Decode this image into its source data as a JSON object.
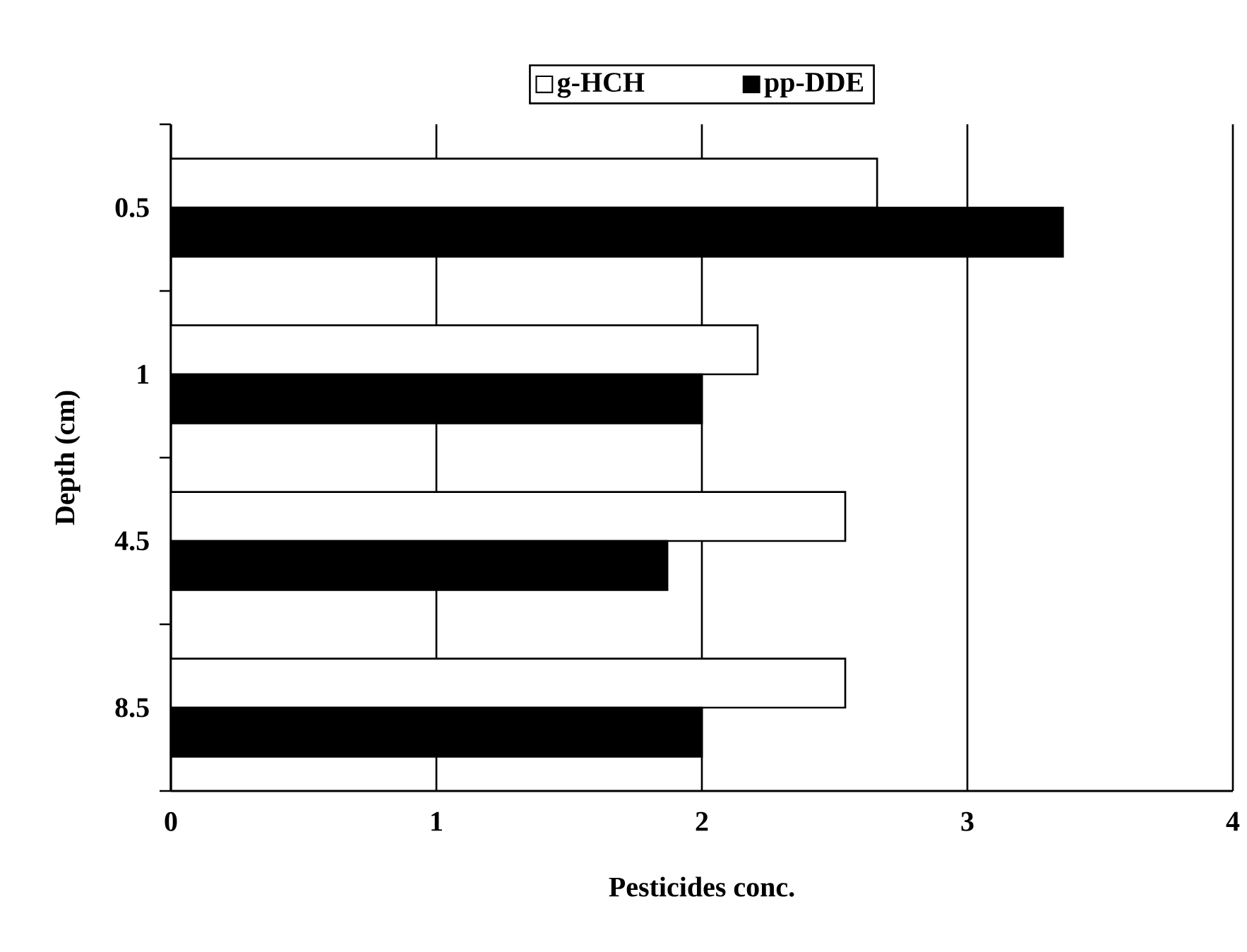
{
  "chart_data": {
    "type": "bar",
    "orientation": "horizontal",
    "xlabel": "Pesticides conc.",
    "ylabel": "Depth (cm)",
    "categories": [
      "0.5",
      "1",
      "4.5",
      "8.5"
    ],
    "series": [
      {
        "name": "g-HCH",
        "color": "#ffffff",
        "values": [
          2.66,
          2.21,
          2.54,
          2.54
        ]
      },
      {
        "name": "pp-DDE",
        "color": "#000000",
        "values": [
          3.36,
          2.0,
          1.87,
          2.0
        ]
      }
    ],
    "xlim": [
      0,
      4
    ],
    "xticks": [
      0,
      1,
      2,
      3,
      4
    ],
    "grid": "x",
    "legend": "top"
  }
}
